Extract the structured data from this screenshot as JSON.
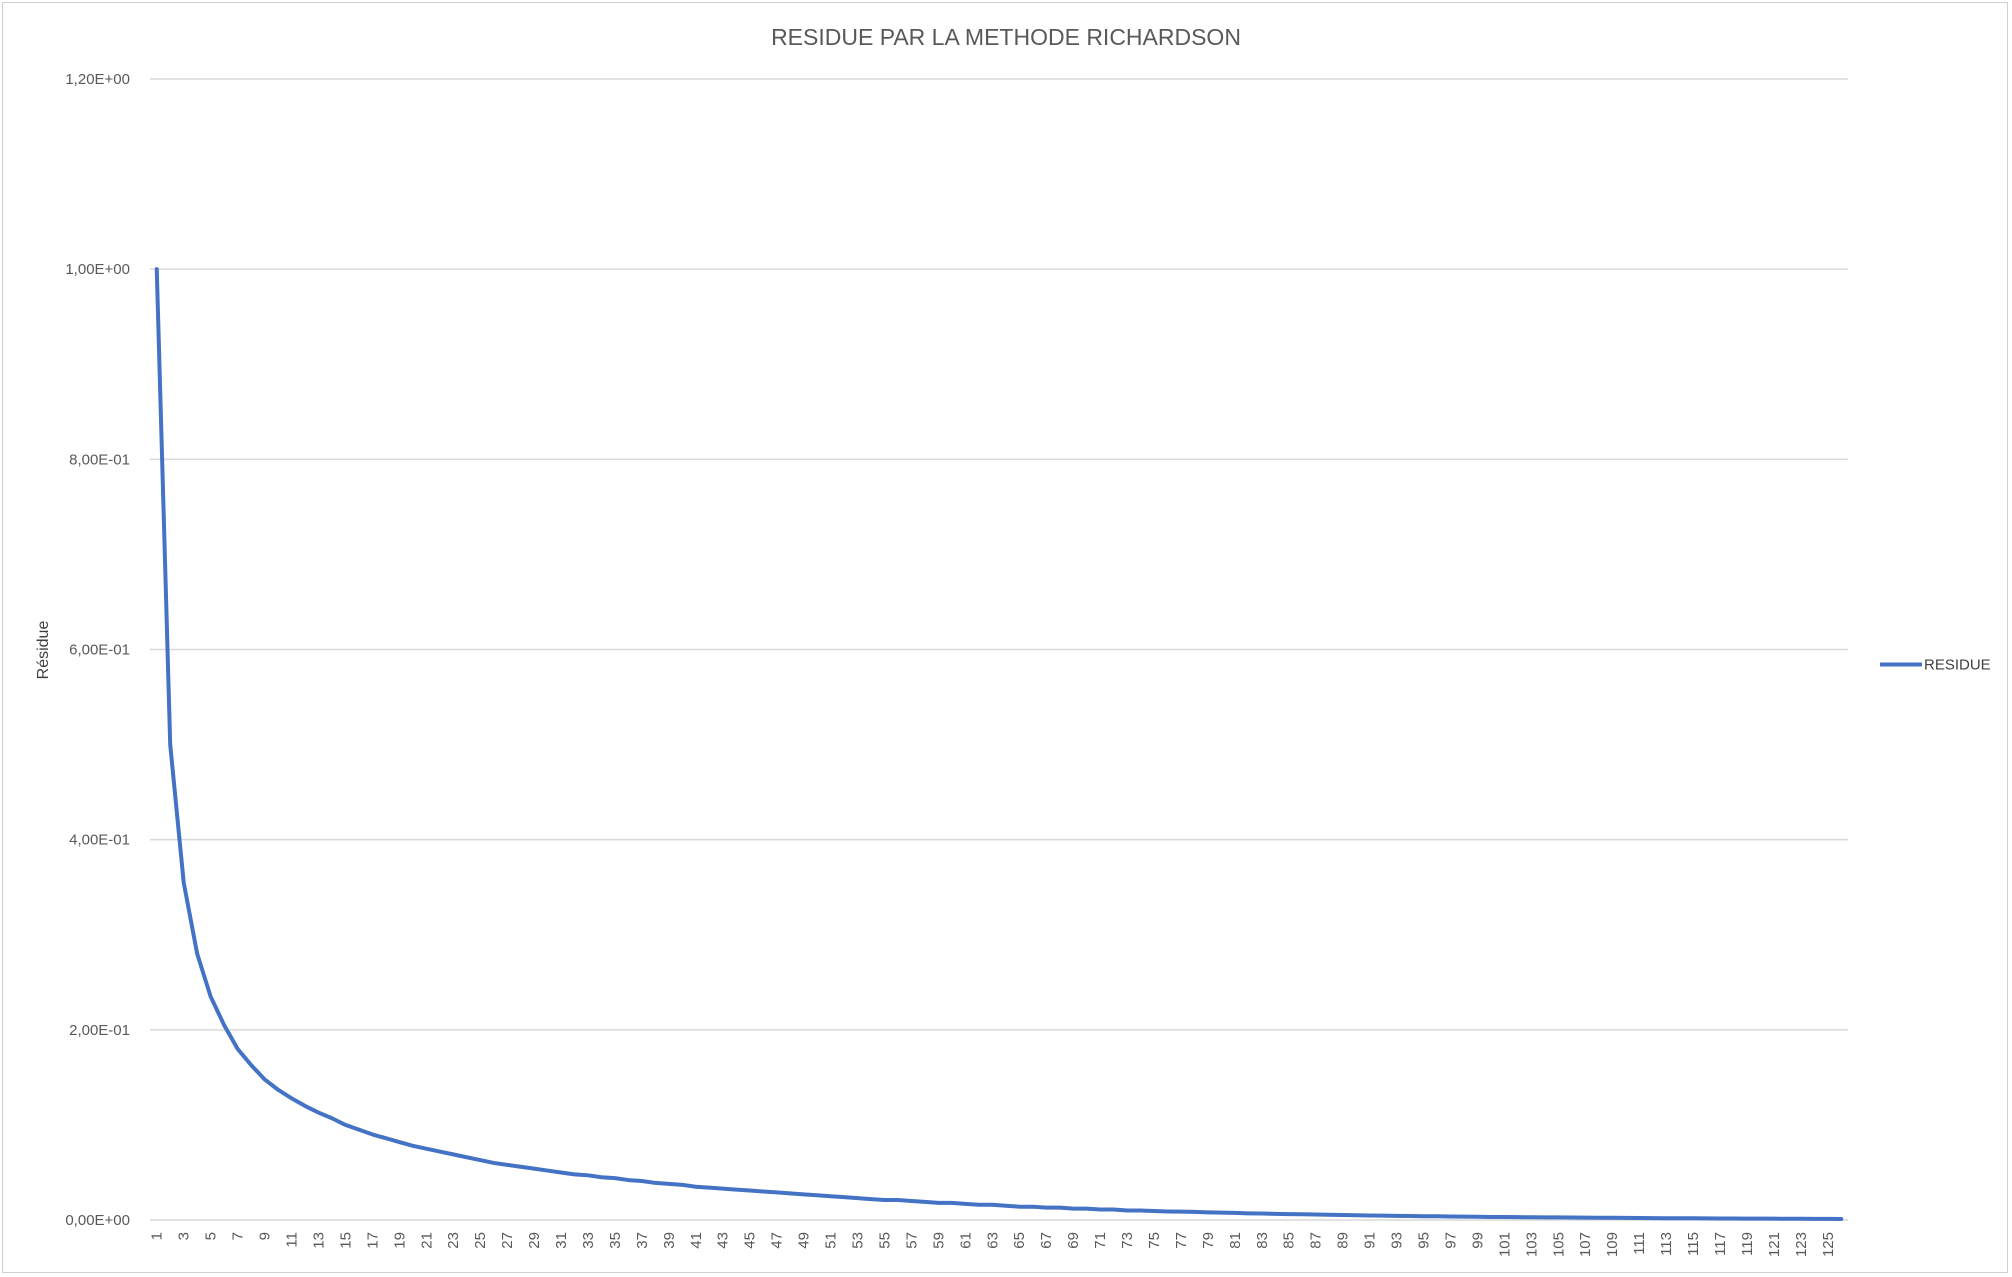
{
  "chart_data": {
    "type": "line",
    "title": "RESIDUE PAR LA METHODE RICHARDSON",
    "xlabel": "",
    "ylabel": "Résidue",
    "x": [
      1,
      2,
      3,
      4,
      5,
      6,
      7,
      8,
      9,
      10,
      11,
      12,
      13,
      14,
      15,
      16,
      17,
      18,
      19,
      20,
      21,
      22,
      23,
      24,
      25,
      26,
      27,
      28,
      29,
      30,
      31,
      32,
      33,
      34,
      35,
      36,
      37,
      38,
      39,
      40,
      41,
      42,
      43,
      44,
      45,
      46,
      47,
      48,
      49,
      50,
      51,
      52,
      53,
      54,
      55,
      56,
      57,
      58,
      59,
      60,
      61,
      62,
      63,
      64,
      65,
      66,
      67,
      68,
      69,
      70,
      71,
      72,
      73,
      74,
      75,
      76,
      77,
      78,
      79,
      80,
      81,
      82,
      83,
      84,
      85,
      86,
      87,
      88,
      89,
      90,
      91,
      92,
      93,
      94,
      95,
      96,
      97,
      98,
      99,
      100,
      101,
      102,
      103,
      104,
      105,
      106,
      107,
      108,
      109,
      110,
      111,
      112,
      113,
      114,
      115,
      116,
      117,
      118,
      119,
      120,
      121,
      122,
      123,
      124,
      125,
      126
    ],
    "x_tick_labels": [
      "1",
      "3",
      "5",
      "7",
      "9",
      "11",
      "13",
      "15",
      "17",
      "19",
      "21",
      "23",
      "25",
      "27",
      "29",
      "31",
      "33",
      "35",
      "37",
      "39",
      "41",
      "43",
      "45",
      "47",
      "49",
      "51",
      "53",
      "55",
      "57",
      "59",
      "61",
      "63",
      "65",
      "67",
      "69",
      "71",
      "73",
      "75",
      "77",
      "79",
      "81",
      "83",
      "85",
      "87",
      "89",
      "91",
      "93",
      "95",
      "97",
      "99",
      "101",
      "103",
      "105",
      "107",
      "109",
      "111",
      "113",
      "115",
      "117",
      "119",
      "121",
      "123",
      "125"
    ],
    "y_tick_labels": [
      "0,00E+00",
      "2,00E-01",
      "4,00E-01",
      "6,00E-01",
      "8,00E-01",
      "1,00E+00",
      "1,20E+00"
    ],
    "ylim": [
      0,
      1.2
    ],
    "grid": true,
    "legend_position": "right",
    "series": [
      {
        "name": "RESIDUE",
        "color": "#4472c4",
        "values": [
          1.0,
          0.5,
          0.355,
          0.28,
          0.235,
          0.205,
          0.18,
          0.163,
          0.148,
          0.137,
          0.128,
          0.12,
          0.113,
          0.107,
          0.1,
          0.095,
          0.09,
          0.086,
          0.082,
          0.078,
          0.075,
          0.072,
          0.069,
          0.066,
          0.063,
          0.06,
          0.058,
          0.056,
          0.054,
          0.052,
          0.05,
          0.048,
          0.047,
          0.045,
          0.044,
          0.042,
          0.041,
          0.039,
          0.038,
          0.037,
          0.035,
          0.034,
          0.033,
          0.032,
          0.031,
          0.03,
          0.029,
          0.028,
          0.027,
          0.026,
          0.025,
          0.024,
          0.023,
          0.022,
          0.021,
          0.021,
          0.02,
          0.019,
          0.018,
          0.018,
          0.017,
          0.016,
          0.016,
          0.015,
          0.014,
          0.014,
          0.013,
          0.013,
          0.012,
          0.012,
          0.011,
          0.011,
          0.01,
          0.01,
          0.0095,
          0.009,
          0.0088,
          0.0085,
          0.008,
          0.0078,
          0.0075,
          0.007,
          0.0068,
          0.0065,
          0.0062,
          0.006,
          0.0058,
          0.0055,
          0.0053,
          0.005,
          0.0048,
          0.0046,
          0.0044,
          0.0042,
          0.004,
          0.0039,
          0.0037,
          0.0035,
          0.0034,
          0.0032,
          0.0031,
          0.003,
          0.0029,
          0.0028,
          0.0027,
          0.0026,
          0.0025,
          0.0024,
          0.0023,
          0.0022,
          0.0021,
          0.002,
          0.0019,
          0.0018,
          0.0018,
          0.0017,
          0.0016,
          0.0016,
          0.0015,
          0.0014,
          0.0014,
          0.0013,
          0.0013,
          0.0012,
          0.0012,
          0.0011
        ]
      }
    ]
  }
}
